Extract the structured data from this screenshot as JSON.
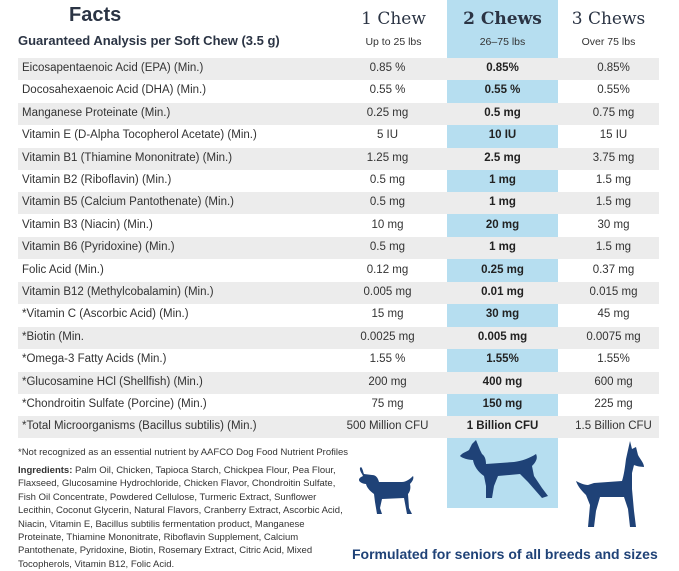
{
  "header": {
    "title": "Facts",
    "subtitle": "Guaranteed Analysis per Soft Chew (3.5  g)",
    "columns": [
      {
        "label": "1 Chew",
        "sub": "Up to 25 lbs"
      },
      {
        "label": "2 Chews",
        "sub": "26–75 lbs"
      },
      {
        "label": "3 Chews",
        "sub": "Over 75 lbs"
      }
    ]
  },
  "rows": [
    {
      "name": "Eicosapentaenoic Acid (EPA) (Min.)",
      "v1": "0.85 %",
      "v2": "0.85%",
      "v3": "0.85%"
    },
    {
      "name": "Docosahexaenoic Acid (DHA) (Min.)",
      "v1": "0.55 %",
      "v2": "0.55 %",
      "v3": "0.55%"
    },
    {
      "name": "Manganese Proteinate (Min.)",
      "v1": "0.25 mg",
      "v2": "0.5 mg",
      "v3": "0.75 mg"
    },
    {
      "name": "Vitamin E (D-Alpha Tocopherol Acetate) (Min.)",
      "v1": "5 IU",
      "v2": "10 IU",
      "v3": "15 IU"
    },
    {
      "name": "Vitamin B1 (Thiamine Mononitrate) (Min.)",
      "v1": "1.25 mg",
      "v2": "2.5 mg",
      "v3": "3.75 mg"
    },
    {
      "name": "Vitamin B2 (Riboflavin) (Min.)",
      "v1": "0.5 mg",
      "v2": "1 mg",
      "v3": "1.5 mg"
    },
    {
      "name": "Vitamin B5 (Calcium Pantothenate) (Min.)",
      "v1": "0.5 mg",
      "v2": "1 mg",
      "v3": "1.5 mg"
    },
    {
      "name": "Vitamin B3 (Niacin) (Min.)",
      "v1": "10 mg",
      "v2": "20 mg",
      "v3": "30 mg"
    },
    {
      "name": "Vitamin B6 (Pyridoxine) (Min.)",
      "v1": "0.5 mg",
      "v2": "1 mg",
      "v3": "1.5 mg"
    },
    {
      "name": "Folic Acid (Min.)",
      "v1": "0.12 mg",
      "v2": "0.25 mg",
      "v3": "0.37 mg"
    },
    {
      "name": "Vitamin B12 (Methylcobalamin) (Min.)",
      "v1": "0.005 mg",
      "v2": "0.01 mg",
      "v3": "0.015 mg"
    },
    {
      "name": "*Vitamin C (Ascorbic Acid) (Min.)",
      "v1": "15 mg",
      "v2": "30 mg",
      "v3": "45 mg"
    },
    {
      "name": "*Biotin (Min.",
      "v1": "0.0025 mg",
      "v2": "0.005 mg",
      "v3": "0.0075 mg"
    },
    {
      "name": "*Omega-3 Fatty Acids (Min.)",
      "v1": "1.55 %",
      "v2": "1.55%",
      "v3": "1.55%"
    },
    {
      "name": "*Glucosamine HCl (Shellfish) (Min.)",
      "v1": "200 mg",
      "v2": "400 mg",
      "v3": "600 mg"
    },
    {
      "name": "*Chondroitin Sulfate (Porcine) (Min.)",
      "v1": "75 mg",
      "v2": "150 mg",
      "v3": "225 mg"
    },
    {
      "name": "*Total Microorganisms (Bacillus subtilis) (Min.)",
      "v1": "500 Million CFU",
      "v2": "1 Billion CFU",
      "v3": "1.5 Billion CFU"
    }
  ],
  "footnote": "*Not recognized as an essential nutrient by AAFCO Dog Food Nutrient Profiles",
  "ingredients_label": "Ingredients:",
  "ingredients_text": "Palm Oil, Chicken, Tapioca Starch, Chickpea Flour, Pea Flour, Flaxseed, Glucosamine Hydrochloride, Chicken Flavor, Chondroitin Sulfate, Fish Oil Concentrate, Powdered Cellulose, Turmeric Extract, Sunflower Lecithin, Coconut Glycerin, Natural Flavors, Cranberry Extract, Ascorbic Acid, Niacin, Vitamin E, Bacillus subtilis fermentation product, Manganese Proteinate, Thiamine Mononitrate, Riboflavin Supplement, Calcium Pantothenate, Pyridoxine, Biotin, Rosemary Extract, Citric Acid, Mixed Tocopherols, Vitamin B12, Folic Acid.",
  "tagline": "Formulated for seniors of all breeds and sizes",
  "colors": {
    "highlight": "#b6def0",
    "dog": "#1f4277",
    "shade": "#ececec"
  }
}
